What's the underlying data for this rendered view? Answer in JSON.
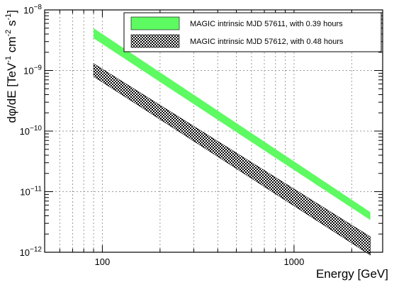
{
  "chart_data": {
    "type": "area",
    "title": "",
    "xlabel": "Energy [GeV]",
    "ylabel": {
      "text": "dφ/dE [TeV",
      "sup1": "-1",
      "mid": " cm",
      "sup2": "-2",
      "mid2": " s",
      "sup3": "-1",
      "end": "]"
    },
    "xscale": "log",
    "yscale": "log",
    "xlim": [
      50,
      2900
    ],
    "ylim": [
      1e-12,
      1e-08
    ],
    "grid": true,
    "legend_position": "top-right",
    "x_tick_labels": [
      {
        "value": 100,
        "label": "100"
      },
      {
        "value": 1000,
        "label": "1000"
      }
    ],
    "y_tick_labels": [
      {
        "exp": -12,
        "base": "10",
        "sup": "−12"
      },
      {
        "exp": -11,
        "base": "10",
        "sup": "−11"
      },
      {
        "exp": -10,
        "base": "10",
        "sup": "−10"
      },
      {
        "exp": -9,
        "base": "10",
        "sup": "−9"
      },
      {
        "exp": -8,
        "base": "10",
        "sup": "−8"
      }
    ],
    "series": [
      {
        "name": "MAGIC intrinsic MJD 57611, with 0.39 hours",
        "fill": "#5dfa62",
        "style": "solid",
        "x": [
          90,
          2500
        ],
        "upper": [
          5e-09,
          4.6e-12
        ],
        "lower": [
          3.4e-09,
          3.4e-12
        ]
      },
      {
        "name": "MAGIC intrinsic MJD 57612, with 0.48 hours",
        "fill": "#000000",
        "style": "hatched",
        "x": [
          90,
          2500
        ],
        "upper": [
          1.3e-09,
          1.8e-12
        ],
        "lower": [
          8e-10,
          9e-13
        ]
      }
    ]
  }
}
